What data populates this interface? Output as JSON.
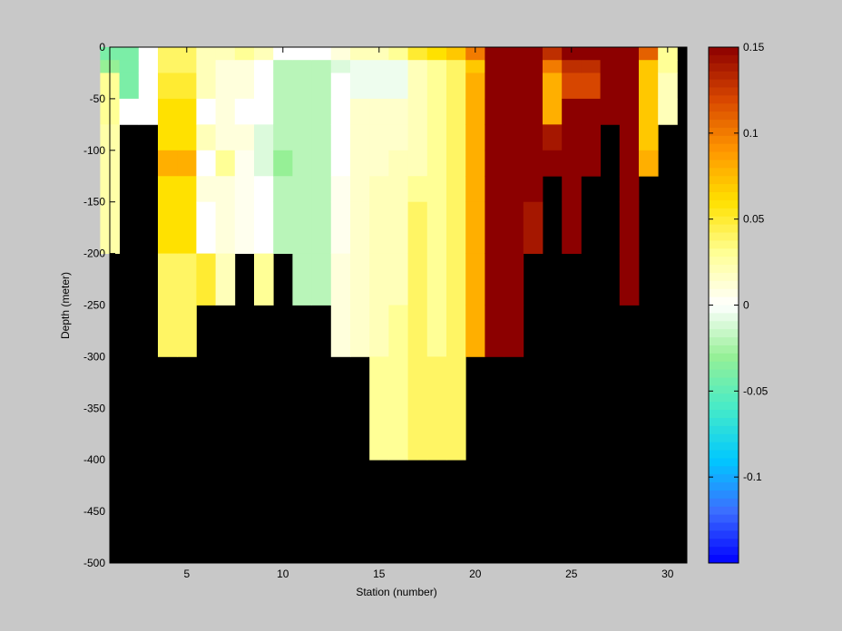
{
  "chart_data": {
    "type": "heatmap",
    "title": "",
    "xlabel": "Station (number)",
    "ylabel": "Depth (meter)",
    "xlim": [
      1,
      31
    ],
    "ylim": [
      -500,
      0
    ],
    "x_ticks": [
      5,
      10,
      15,
      20,
      25,
      30
    ],
    "y_ticks": [
      0,
      -50,
      -100,
      -150,
      -200,
      -250,
      -300,
      -350,
      -400,
      -450,
      -500
    ],
    "depth_bin_edges": [
      0,
      -12.5,
      -25,
      -50,
      -75,
      -100,
      -125,
      -150,
      -200,
      -250,
      -300,
      -400
    ],
    "masked_color": "#000000",
    "colorbar": {
      "range": [
        -0.15,
        0.15
      ],
      "ticks": [
        0.15,
        0.1,
        0.05,
        0,
        -0.05,
        -0.1
      ],
      "tick_labels": [
        "0.15",
        "0.1",
        "0.05",
        "0",
        "-0.05",
        "-0.1"
      ]
    },
    "columns": [
      {
        "station": 1,
        "values": [
          -0.04,
          -0.03,
          0.03,
          0.03,
          0.025,
          0.025,
          0.025,
          0.025,
          null,
          null,
          null
        ]
      },
      {
        "station": 2,
        "values": [
          -0.04,
          -0.04,
          -0.04,
          0.0,
          null,
          null,
          null,
          null,
          null,
          null,
          null
        ]
      },
      {
        "station": 3,
        "values": [
          0.0,
          0.0,
          0.0,
          0.0,
          null,
          null,
          null,
          null,
          null,
          null,
          null
        ]
      },
      {
        "station": 4,
        "values": [
          0.04,
          0.04,
          0.05,
          0.06,
          0.06,
          0.08,
          0.06,
          0.06,
          0.04,
          0.04,
          null
        ]
      },
      {
        "station": 5,
        "values": [
          0.04,
          0.04,
          0.05,
          0.06,
          0.06,
          0.08,
          0.06,
          0.06,
          0.04,
          0.04,
          null
        ]
      },
      {
        "station": 6,
        "values": [
          0.02,
          0.02,
          0.02,
          0.0,
          0.02,
          0.0,
          0.01,
          0.0,
          0.05,
          null,
          null
        ]
      },
      {
        "station": 7,
        "values": [
          0.02,
          0.01,
          0.01,
          0.01,
          0.01,
          0.03,
          0.01,
          0.01,
          0.02,
          null,
          null
        ]
      },
      {
        "station": 8,
        "values": [
          0.03,
          0.01,
          0.01,
          0.0,
          0.01,
          0.005,
          0.005,
          0.005,
          null,
          null,
          null
        ]
      },
      {
        "station": 9,
        "values": [
          0.02,
          0.0,
          0.0,
          0.0,
          -0.01,
          -0.01,
          0.0,
          0.0,
          0.03,
          null,
          null
        ]
      },
      {
        "station": 10,
        "values": [
          0.0,
          -0.02,
          -0.02,
          -0.02,
          -0.02,
          -0.03,
          -0.02,
          -0.02,
          null,
          null,
          null
        ]
      },
      {
        "station": 11,
        "values": [
          0.0,
          -0.02,
          -0.02,
          -0.02,
          -0.02,
          -0.02,
          -0.02,
          -0.02,
          -0.02,
          null,
          null
        ]
      },
      {
        "station": 12,
        "values": [
          0.0,
          -0.02,
          -0.02,
          -0.02,
          -0.02,
          -0.02,
          -0.02,
          -0.02,
          -0.02,
          null,
          null
        ]
      },
      {
        "station": 13,
        "values": [
          0.01,
          -0.01,
          0.0,
          0.0,
          0.0,
          0.0,
          0.005,
          0.005,
          0.01,
          0.01,
          null
        ]
      },
      {
        "station": 14,
        "values": [
          0.02,
          -0.005,
          -0.005,
          0.015,
          0.015,
          0.015,
          0.015,
          0.015,
          0.015,
          0.015,
          null
        ]
      },
      {
        "station": 15,
        "values": [
          0.02,
          -0.005,
          -0.005,
          0.015,
          0.015,
          0.015,
          0.02,
          0.02,
          0.02,
          0.02,
          0.03
        ]
      },
      {
        "station": 16,
        "values": [
          0.03,
          -0.005,
          -0.005,
          0.015,
          0.015,
          0.02,
          0.02,
          0.02,
          0.02,
          0.03,
          0.03
        ]
      },
      {
        "station": 17,
        "values": [
          0.05,
          0.02,
          0.02,
          0.02,
          0.02,
          0.02,
          0.03,
          0.04,
          0.04,
          0.04,
          0.04
        ]
      },
      {
        "station": 18,
        "values": [
          0.06,
          0.03,
          0.03,
          0.03,
          0.03,
          0.03,
          0.03,
          0.03,
          0.03,
          0.03,
          0.04
        ]
      },
      {
        "station": 19,
        "values": [
          0.07,
          0.04,
          0.04,
          0.04,
          0.04,
          0.04,
          0.04,
          0.04,
          0.04,
          0.04,
          0.04
        ]
      },
      {
        "station": 20,
        "values": [
          0.1,
          0.07,
          0.08,
          0.08,
          0.08,
          0.08,
          0.08,
          0.08,
          0.08,
          0.08,
          null
        ]
      },
      {
        "station": 21,
        "values": [
          0.15,
          0.15,
          0.15,
          0.15,
          0.15,
          0.15,
          0.15,
          0.15,
          0.15,
          0.15,
          null
        ]
      },
      {
        "station": 22,
        "values": [
          0.15,
          0.15,
          0.15,
          0.15,
          0.15,
          0.15,
          0.15,
          0.15,
          0.15,
          0.15,
          null
        ]
      },
      {
        "station": 23,
        "values": [
          0.15,
          0.15,
          0.15,
          0.15,
          0.15,
          0.15,
          0.15,
          0.14,
          null,
          null,
          null
        ]
      },
      {
        "station": 24,
        "values": [
          0.13,
          0.1,
          0.08,
          0.08,
          0.14,
          0.15,
          null,
          null,
          null,
          null,
          null
        ]
      },
      {
        "station": 25,
        "values": [
          0.15,
          0.13,
          0.12,
          0.15,
          0.15,
          0.15,
          0.15,
          0.15,
          null,
          null,
          null
        ]
      },
      {
        "station": 26,
        "values": [
          0.15,
          0.13,
          0.12,
          0.15,
          0.15,
          0.15,
          null,
          null,
          null,
          null,
          null
        ]
      },
      {
        "station": 27,
        "values": [
          0.15,
          0.15,
          0.15,
          0.15,
          null,
          null,
          null,
          null,
          null,
          null,
          null
        ]
      },
      {
        "station": 28,
        "values": [
          0.15,
          0.15,
          0.15,
          0.15,
          0.15,
          0.15,
          0.15,
          0.15,
          0.15,
          null,
          null
        ]
      },
      {
        "station": 29,
        "values": [
          0.11,
          0.07,
          0.07,
          0.07,
          0.07,
          0.08,
          null,
          null,
          null,
          null,
          null
        ]
      },
      {
        "station": 30,
        "values": [
          0.03,
          0.03,
          0.02,
          0.02,
          null,
          null,
          null,
          null,
          null,
          null,
          null
        ]
      }
    ]
  }
}
